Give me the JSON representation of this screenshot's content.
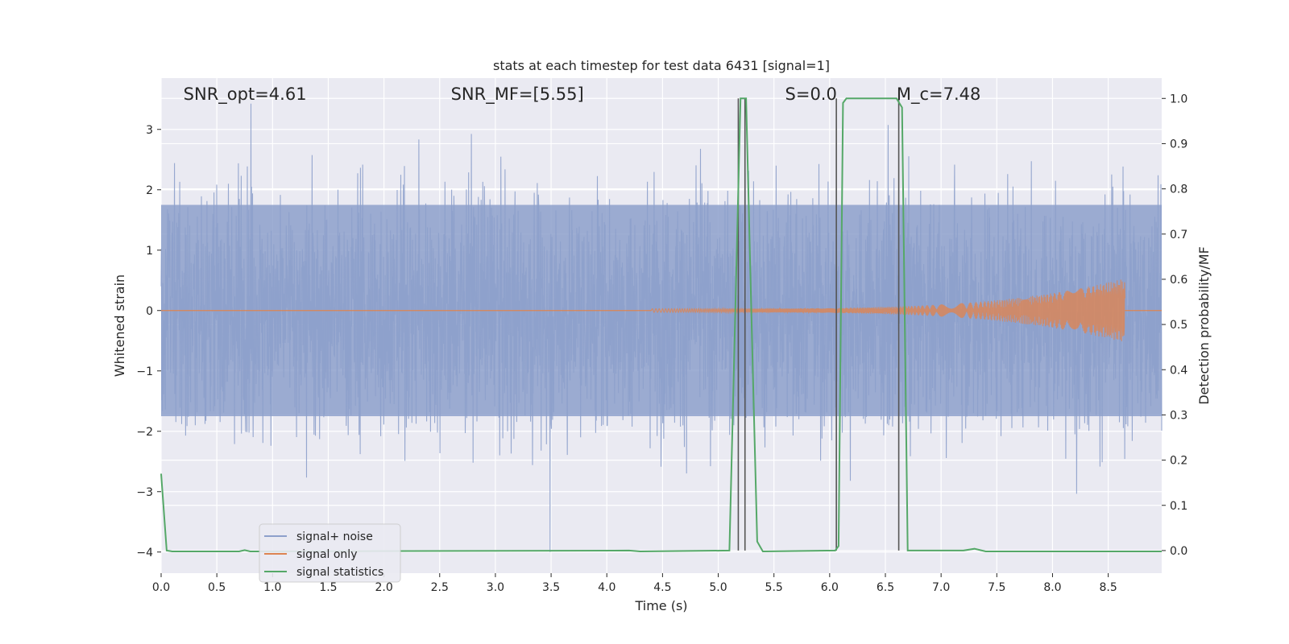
{
  "chart_data": {
    "type": "line",
    "title": "stats at each timestep for test data 6431 [signal=1]",
    "xlabel": "Time (s)",
    "ylabel_left": "Whitened strain",
    "ylabel_right": "Detection probability/MF",
    "xlim": [
      0.0,
      8.98
    ],
    "ylim_left": [
      -4.35,
      3.85
    ],
    "ylim_right": [
      -0.05,
      1.045
    ],
    "xticks": [
      0.0,
      0.5,
      1.0,
      1.5,
      2.0,
      2.5,
      3.0,
      3.5,
      4.0,
      4.5,
      5.0,
      5.5,
      6.0,
      6.5,
      7.0,
      7.5,
      8.0,
      8.5
    ],
    "yticks_left": [
      -4,
      -3,
      -2,
      -1,
      0,
      1,
      2,
      3
    ],
    "yticks_right": [
      0.0,
      0.1,
      0.2,
      0.3,
      0.4,
      0.5,
      0.6,
      0.7,
      0.8,
      0.9,
      1.0
    ],
    "grid": true,
    "legend_position": "lower-left",
    "colors": {
      "background": "#eaeaf2",
      "noise": "#8da0cb",
      "signal": "#dd8452",
      "stats": "#55a868",
      "markers": "#555555"
    },
    "annotations": [
      {
        "text": "SNR_opt=4.61",
        "x": 0.2
      },
      {
        "text": "SNR_MF=[5.55]",
        "x": 2.6
      },
      {
        "text": "S=0.0",
        "x": 5.6
      },
      {
        "text": "M_c=7.48",
        "x": 6.6
      }
    ],
    "series": [
      {
        "name": "signal+ noise",
        "axis": "left",
        "description_values": "whitened strain noise, amplitude approx within [-3.3, 3.3]",
        "envelope": 1.75
      },
      {
        "name": "signal only",
        "axis": "left",
        "chirp_start": 4.4,
        "chirp_end": 8.65,
        "peak_amplitude": 0.5
      },
      {
        "name": "signal statistics",
        "axis": "right",
        "x": [
          0.0,
          0.05,
          0.1,
          0.7,
          0.75,
          0.8,
          4.2,
          4.3,
          5.1,
          5.2,
          5.25,
          5.3,
          5.35,
          5.4,
          6.05,
          6.08,
          6.12,
          6.15,
          6.5,
          6.6,
          6.65,
          6.7,
          7.2,
          7.3,
          7.4,
          8.98
        ],
        "values": [
          0.17,
          0.0,
          -0.002,
          -0.002,
          0.001,
          -0.002,
          0.0,
          -0.002,
          0.0,
          1.0,
          1.0,
          0.5,
          0.02,
          -0.002,
          0.0,
          0.01,
          0.99,
          1.0,
          1.0,
          1.0,
          0.98,
          0.0,
          0.0,
          0.004,
          -0.002,
          -0.002
        ]
      }
    ],
    "vertical_markers": [
      5.18,
      5.24,
      6.06,
      6.62
    ]
  }
}
